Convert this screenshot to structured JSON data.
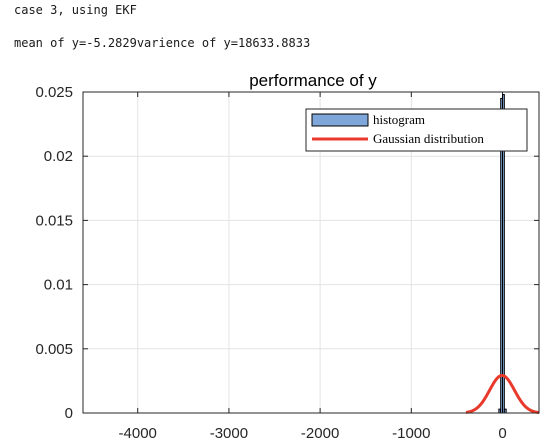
{
  "console": {
    "line1": "case 3, using EKF",
    "line2": "mean of y=-5.2829varience of y=18633.8833"
  },
  "chart_data": {
    "type": "bar",
    "title": "performance of y",
    "xlabel": "",
    "ylabel": "",
    "xlim": [
      -4600,
      400
    ],
    "ylim": [
      0,
      0.025
    ],
    "xticks": [
      -4000,
      -3000,
      -2000,
      -1000,
      0
    ],
    "xtick_labels": [
      "-4000",
      "-3000",
      "-2000",
      "-1000",
      "0"
    ],
    "yticks": [
      0,
      0.005,
      0.01,
      0.015,
      0.02,
      0.025
    ],
    "ytick_labels": [
      "0",
      "0.005",
      "0.01",
      "0.015",
      "0.02",
      "0.025"
    ],
    "grid": true,
    "legend_position": "top-right",
    "series": [
      {
        "name": "histogram",
        "kind": "histogram",
        "color": "#7ea6d8",
        "edge_color": "#000000",
        "bins": [
          {
            "x0": -40,
            "x1": -20,
            "value": 0.0003
          },
          {
            "x0": -20,
            "x1": 0,
            "value": 0.0245
          },
          {
            "x0": 0,
            "x1": 20,
            "value": 0.0248
          },
          {
            "x0": 20,
            "x1": 40,
            "value": 0.0003
          }
        ]
      },
      {
        "name": "Gaussian distribution",
        "kind": "gaussian",
        "color": "#e8392b",
        "mean": -5.2829,
        "variance": 18633.8833,
        "x_range": [
          -400,
          400
        ]
      }
    ]
  }
}
